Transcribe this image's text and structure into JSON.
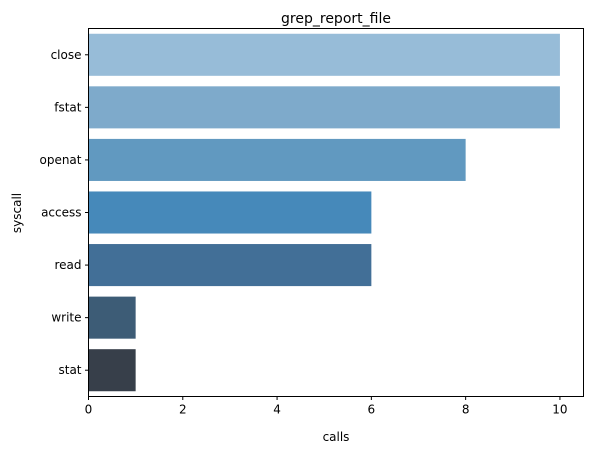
{
  "chart_data": {
    "type": "bar",
    "orientation": "horizontal",
    "title": "grep_report_file",
    "xlabel": "calls",
    "ylabel": "syscall",
    "categories": [
      "close",
      "fstat",
      "openat",
      "access",
      "read",
      "write",
      "stat"
    ],
    "values": [
      10,
      10,
      8,
      6,
      6,
      1,
      1
    ],
    "colors": [
      "#97bcd8",
      "#7eaacb",
      "#6199c0",
      "#4689ba",
      "#426f97",
      "#3d5c76",
      "#373f4a"
    ],
    "xlim": [
      0,
      10.5
    ],
    "xticks": [
      0,
      2,
      4,
      6,
      8,
      10
    ],
    "grid": false,
    "legend": "none"
  }
}
